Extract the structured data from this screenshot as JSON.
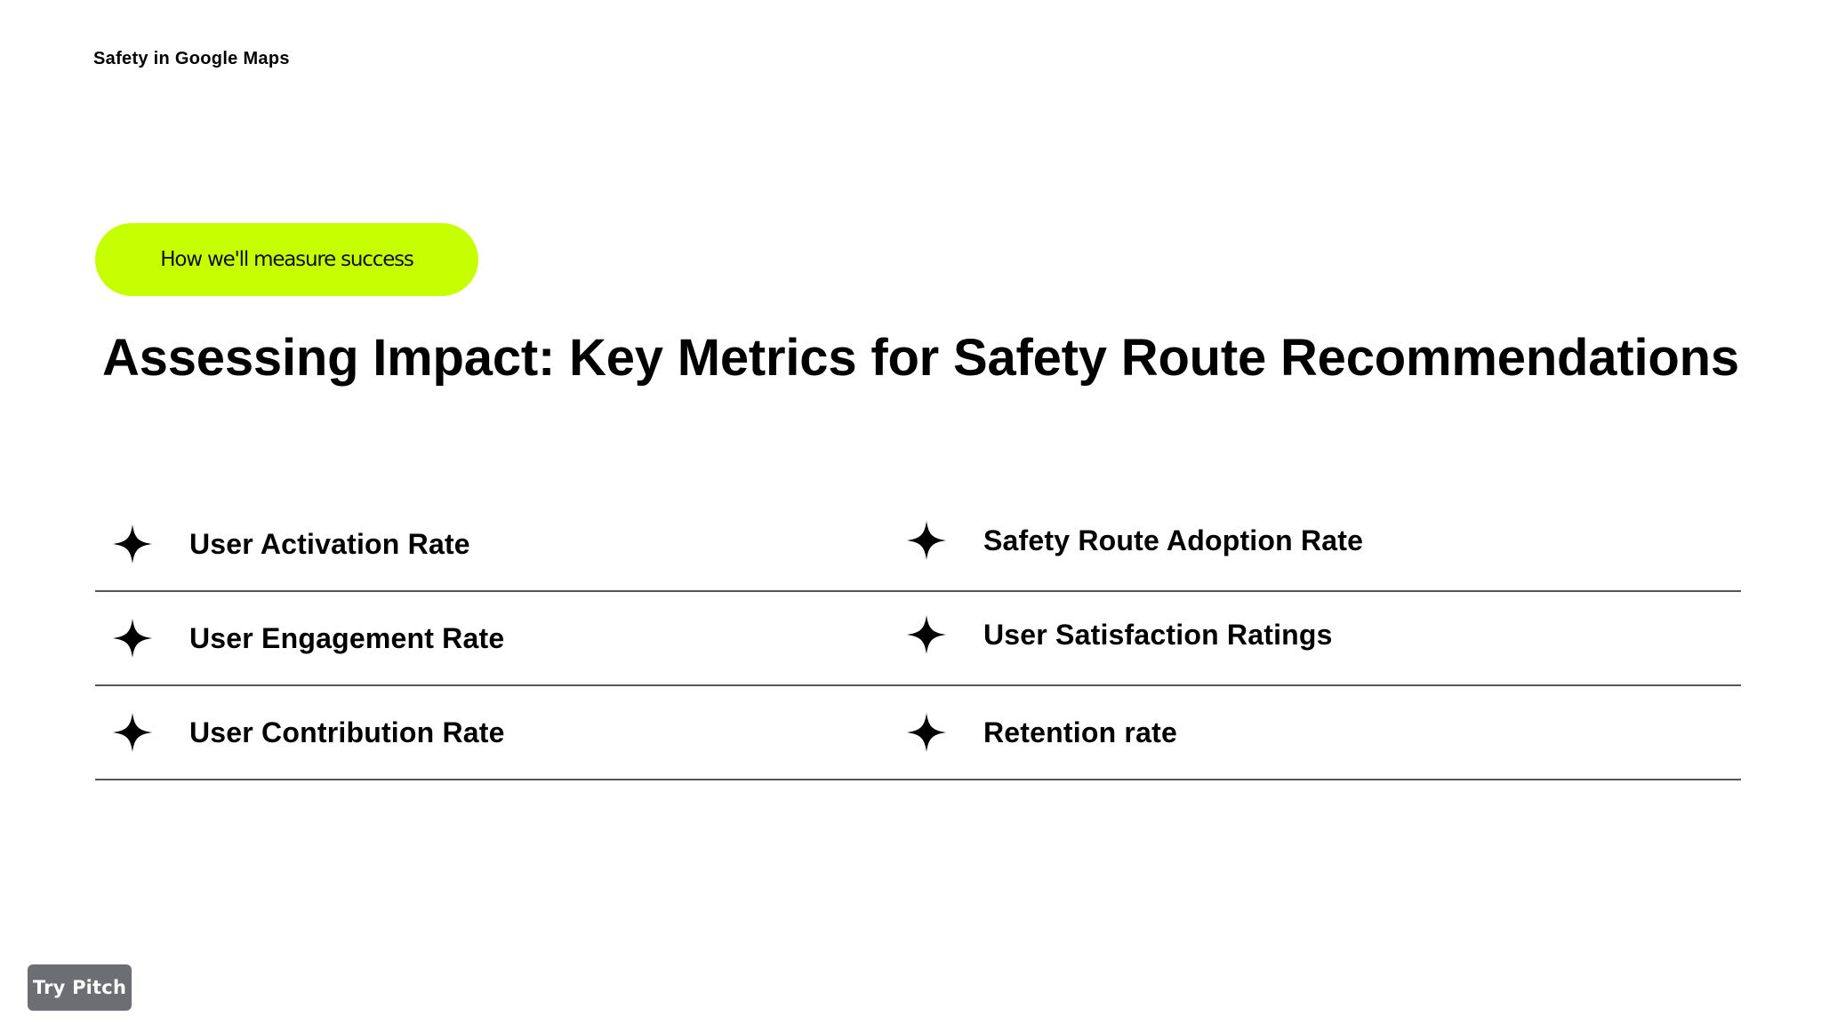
{
  "header": {
    "deck_title": "Safety in Google Maps"
  },
  "tag": {
    "label": "How we'll measure success",
    "color": "#c6ff00"
  },
  "headline": "Assessing Impact: Key Metrics for Safety Route Recommendations",
  "metrics": {
    "icon": "four-point-star-icon",
    "rows": [
      {
        "left": "User Activation Rate",
        "right": "Safety Route Adoption Rate"
      },
      {
        "left": "User Engagement Rate",
        "right": "User Satisfaction Ratings"
      },
      {
        "left": "User Contribution Rate",
        "right": "Retention rate"
      }
    ]
  },
  "footer": {
    "try_pitch_label": "Try Pitch"
  }
}
